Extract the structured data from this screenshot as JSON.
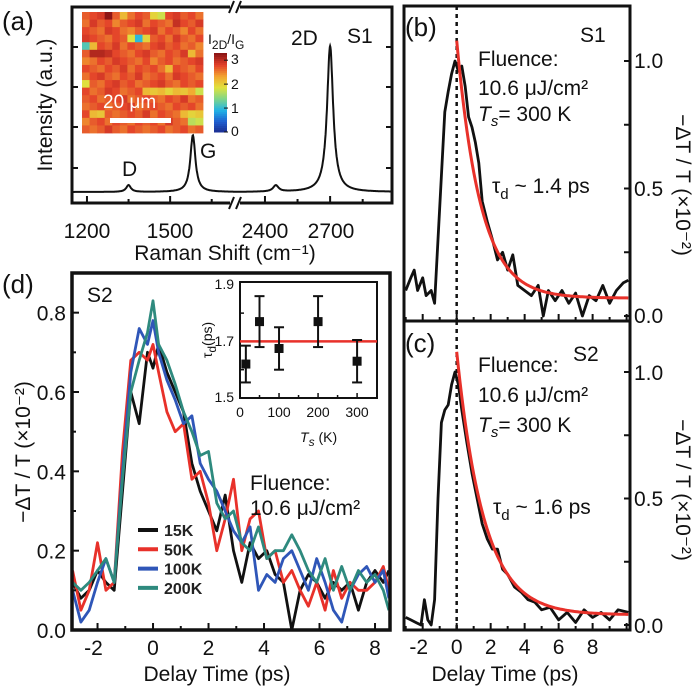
{
  "chart_data": [
    {
      "panel": "(a)",
      "type": "line",
      "sample": "S1",
      "xlabel": "Raman Shift (cm⁻¹)",
      "ylabel": "Intensity (a.u.)",
      "xaxis_broken": true,
      "xlim_left": [
        1146,
        1734
      ],
      "xlim_right": [
        2262,
        2985
      ],
      "ylim": [
        0,
        1
      ],
      "xticks": [
        "1200",
        "1500",
        "2400",
        "2700"
      ],
      "xtick_values": [
        1200,
        1500,
        2400,
        2700
      ],
      "baseline": 0.056,
      "peaks": [
        {
          "label": "D",
          "center": 1350,
          "height": 0.035,
          "hwhm": 10
        },
        {
          "label": "G",
          "center": 1582,
          "height": 0.29,
          "hwhm": 11
        },
        {
          "label": "",
          "center": 2450,
          "height": 0.032,
          "hwhm": 15
        },
        {
          "label": "2D",
          "center": 2700,
          "height": 0.745,
          "hwhm": 17
        }
      ],
      "inset": {
        "type": "heatmap",
        "colorbar_label": {
          "main": "I",
          "sub1": "2D",
          "mid": "/I",
          "sub2": "G"
        },
        "colorbar_ticks": [
          "3",
          "2",
          "1",
          "0"
        ],
        "colorbar_range": [
          0,
          3.3
        ],
        "scalebar_label": "20 μm",
        "colormap": [
          "#1b2a8c",
          "#1f5fd0",
          "#22b4e6",
          "#7ed58a",
          "#dfe23e",
          "#f3a530",
          "#e3402a",
          "#8e1616"
        ],
        "grid": [
          [
            2.7,
            2.8,
            2.9,
            3.3,
            2.7,
            2.2,
            2.6,
            2.8,
            2.7,
            2.0,
            1.8,
            2.8,
            2.9,
            2.7,
            2.8,
            2.6
          ],
          [
            2.6,
            2.9,
            2.7,
            2.8,
            2.5,
            2.7,
            2.8,
            2.9,
            2.6,
            2.8,
            2.7,
            2.6,
            3.0,
            2.8,
            2.7,
            2.9
          ],
          [
            2.8,
            2.7,
            2.6,
            2.9,
            2.8,
            2.6,
            2.5,
            2.7,
            2.8,
            2.9,
            2.6,
            2.8,
            2.7,
            2.5,
            2.8,
            2.6
          ],
          [
            2.9,
            2.8,
            2.7,
            2.6,
            2.8,
            2.7,
            1.9,
            1.0,
            2.0,
            2.7,
            2.8,
            2.6,
            2.9,
            2.7,
            2.6,
            2.8
          ],
          [
            1.2,
            2.2,
            2.8,
            2.7,
            2.9,
            2.6,
            2.8,
            2.7,
            2.6,
            2.8,
            2.9,
            2.7,
            2.8,
            2.6,
            2.7,
            2.5
          ],
          [
            2.7,
            3.1,
            3.1,
            3.0,
            2.8,
            2.7,
            2.6,
            2.8,
            2.9,
            2.7,
            2.6,
            2.8,
            2.7,
            2.9,
            2.2,
            2.6
          ],
          [
            2.5,
            2.6,
            2.8,
            2.7,
            2.9,
            2.8,
            2.7,
            2.6,
            2.8,
            2.5,
            2.7,
            2.8,
            2.6,
            2.7,
            2.8,
            2.9
          ],
          [
            2.8,
            2.7,
            2.6,
            2.8,
            2.7,
            2.9,
            2.6,
            2.8,
            2.7,
            2.8,
            2.6,
            2.2,
            2.8,
            2.7,
            2.6,
            2.8
          ],
          [
            2.6,
            2.8,
            2.9,
            2.7,
            2.6,
            2.8,
            2.7,
            2.9,
            2.6,
            2.7,
            2.8,
            2.6,
            2.9,
            2.8,
            2.7,
            2.6
          ],
          [
            1.9,
            2.7,
            2.6,
            2.8,
            2.9,
            2.7,
            2.8,
            2.6,
            2.7,
            2.8,
            2.9,
            2.7,
            2.6,
            2.8,
            2.7,
            2.8
          ],
          [
            2.8,
            2.6,
            2.7,
            2.9,
            2.8,
            2.6,
            2.7,
            2.8,
            2.2,
            2.1,
            2.2,
            2.0,
            2.2,
            2.1,
            2.3,
            1.8
          ],
          [
            2.7,
            2.8,
            2.6,
            2.7,
            2.8,
            2.9,
            2.6,
            2.7,
            2.8,
            2.7,
            2.6,
            2.8,
            2.7,
            2.9,
            2.6,
            2.7
          ],
          [
            2.6,
            2.7,
            2.8,
            2.6,
            2.7,
            2.8,
            2.9,
            2.6,
            2.7,
            2.8,
            2.7,
            2.6,
            2.8,
            2.7,
            2.8,
            2.6
          ],
          [
            2.8,
            2.2,
            2.1,
            2.7,
            2.6,
            2.7,
            2.8,
            2.7,
            2.9,
            2.6,
            2.8,
            2.7,
            2.6,
            2.2,
            2.0,
            2.1
          ],
          [
            2.5,
            2.7,
            2.8,
            2.6,
            2.8,
            2.7,
            2.6,
            2.8,
            2.7,
            2.8,
            2.6,
            2.9,
            2.7,
            2.6,
            1.7,
            1.8
          ],
          [
            2.7,
            2.6,
            2.7,
            2.9,
            2.7,
            2.6,
            2.8,
            2.7,
            2.6,
            2.7,
            2.8,
            2.6,
            2.7,
            2.8,
            2.6,
            2.7
          ]
        ]
      },
      "annotations": {
        "d": "D",
        "g": "G",
        "two_d": "2D",
        "sample": "S1"
      }
    },
    {
      "panel": "(b)",
      "type": "line",
      "sample": "S1",
      "xlim": [
        -3.1,
        10.2
      ],
      "ylim": [
        0,
        1.22
      ],
      "yticks": [
        "1.0",
        "0.5",
        "0.0"
      ],
      "ylabel": "−ΔT / T (×10⁻²)",
      "fluence_label": "Fluence:",
      "fluence_value": "10.6 μJ/cm²",
      "temperature": {
        "t": "T",
        "s": "s",
        "rest": "= 300 K"
      },
      "tau": {
        "tau": "τ",
        "d": "d",
        "rest": " ~ 1.4 ps"
      },
      "fit": {
        "amplitude": 1.01,
        "tau_ps": 1.4,
        "offset": 0.07,
        "color": "#e8312a"
      },
      "x": [
        -3.0,
        -2.7,
        -2.5,
        -2.3,
        -2.0,
        -1.8,
        -1.5,
        -1.3,
        -1.1,
        -0.9,
        -0.7,
        -0.5,
        -0.3,
        -0.1,
        0.1,
        0.3,
        0.5,
        0.7,
        0.9,
        1.1,
        1.3,
        1.5,
        1.8,
        2.1,
        2.4,
        2.7,
        3.0,
        3.3,
        3.6,
        4.0,
        4.4,
        4.8,
        5.1,
        5.4,
        5.8,
        6.2,
        6.6,
        7.0,
        7.4,
        7.8,
        8.2,
        8.6,
        9.0,
        9.4,
        9.8,
        10.1
      ],
      "y": [
        0.1,
        0.15,
        0.18,
        0.1,
        0.15,
        0.08,
        0.1,
        0.05,
        0.3,
        0.55,
        0.8,
        0.88,
        0.95,
        1.0,
        0.96,
        0.98,
        0.9,
        0.78,
        0.74,
        0.68,
        0.6,
        0.45,
        0.37,
        0.3,
        0.22,
        0.25,
        0.18,
        0.24,
        0.12,
        0.1,
        0.08,
        0.12,
        0.0,
        0.1,
        0.06,
        0.1,
        0.05,
        0.09,
        0.0,
        0.08,
        0.06,
        0.12,
        0.05,
        0.1,
        0.13,
        0.14
      ]
    },
    {
      "panel": "(c)",
      "type": "line",
      "sample": "S2",
      "xlim": [
        -3.1,
        10.2
      ],
      "ylim": [
        0,
        1.2
      ],
      "xticks": [
        "-2",
        "0",
        "2",
        "4",
        "6",
        "8"
      ],
      "yticks": [
        "1.0",
        "0.5",
        "0.0"
      ],
      "xlabel": "Delay Time (ps)",
      "ylabel": "−ΔT / T (×10⁻²)",
      "fluence_label": "Fluence:",
      "fluence_value": "10.6 μJ/cm²",
      "temperature": {
        "t": "T",
        "s": "s",
        "rest": "= 300 K"
      },
      "tau": {
        "tau": "τ",
        "d": "d",
        "rest": " ~ 1.6 ps"
      },
      "fit": {
        "amplitude": 1.04,
        "tau_ps": 1.6,
        "offset": 0.04,
        "color": "#e8312a"
      },
      "x": [
        -3.0,
        -2.7,
        -2.4,
        -2.1,
        -1.9,
        -1.7,
        -1.5,
        -1.3,
        -1.1,
        -0.9,
        -0.7,
        -0.5,
        -0.3,
        -0.1,
        0.1,
        0.3,
        0.6,
        0.9,
        1.2,
        1.5,
        1.8,
        2.1,
        2.4,
        2.7,
        3.0,
        3.4,
        3.8,
        4.2,
        4.6,
        5.0,
        5.5,
        6.0,
        6.5,
        7.0,
        7.5,
        8.0,
        8.5,
        9.0,
        9.5,
        10.1
      ],
      "y": [
        0.03,
        0.02,
        0.01,
        0.0,
        0.1,
        0.02,
        0.0,
        0.1,
        0.5,
        0.8,
        0.85,
        0.87,
        0.95,
        1.0,
        0.95,
        0.85,
        0.72,
        0.6,
        0.5,
        0.4,
        0.34,
        0.3,
        0.3,
        0.22,
        0.2,
        0.15,
        0.13,
        0.1,
        0.09,
        0.06,
        0.07,
        0.02,
        0.05,
        0.01,
        0.06,
        0.03,
        0.05,
        0.02,
        0.06,
        0.05
      ]
    },
    {
      "panel": "(d)",
      "type": "line",
      "sample": "S2",
      "xlim": [
        -2.92,
        8.54
      ],
      "ylim": [
        0,
        0.9
      ],
      "xticks": [
        "-2",
        "0",
        "2",
        "4",
        "6",
        "8"
      ],
      "yticks": [
        "0.8",
        "0.6",
        "0.4",
        "0.2",
        "0.0"
      ],
      "xlabel": "Delay Time (ps)",
      "ylabel": "−ΔT / T (×10⁻²)",
      "fluence_label": "Fluence:",
      "fluence_value": "10.6 μJ/cm²",
      "legend_position": "bottom-left",
      "x": [
        -2.9,
        -2.6,
        -2.3,
        -2.0,
        -1.7,
        -1.4,
        -1.1,
        -0.8,
        -0.5,
        -0.2,
        0,
        0.2,
        0.5,
        0.8,
        1.1,
        1.4,
        1.7,
        2.0,
        2.3,
        2.6,
        2.9,
        3.2,
        3.5,
        3.8,
        4.1,
        4.4,
        4.7,
        5.0,
        5.3,
        5.6,
        5.9,
        6.2,
        6.5,
        6.8,
        7.1,
        7.4,
        7.7,
        8.0,
        8.3,
        8.5
      ],
      "series": [
        {
          "name": "15K",
          "color": "#111111",
          "values": [
            0.12,
            0.08,
            0.1,
            0.15,
            0.12,
            0.1,
            0.35,
            0.6,
            0.52,
            0.7,
            0.66,
            0.72,
            0.65,
            0.6,
            0.55,
            0.42,
            0.35,
            0.3,
            0.25,
            0.34,
            0.2,
            0.12,
            0.22,
            0.18,
            0.2,
            0.14,
            0.12,
            0.0,
            0.1,
            0.14,
            0.12,
            0.08,
            0.12,
            0.1,
            0.12,
            0.05,
            0.12,
            0.15,
            0.12,
            0.15
          ]
        },
        {
          "name": "50K",
          "color": "#e8312a",
          "values": [
            0.15,
            0.05,
            0.1,
            0.22,
            0.1,
            0.12,
            0.45,
            0.68,
            0.7,
            0.68,
            0.72,
            0.65,
            0.55,
            0.5,
            0.52,
            0.38,
            0.4,
            0.32,
            0.2,
            0.28,
            0.38,
            0.2,
            0.28,
            0.3,
            0.18,
            0.2,
            0.12,
            0.15,
            0.1,
            0.06,
            0.12,
            0.05,
            0.15,
            0.08,
            0.12,
            0.1,
            0.1,
            0.12,
            0.16,
            0.1
          ]
        },
        {
          "name": "100K",
          "color": "#2f56b8",
          "values": [
            0.1,
            0.02,
            0.05,
            0.12,
            0.18,
            0.12,
            0.4,
            0.65,
            0.76,
            0.72,
            0.78,
            0.7,
            0.63,
            0.58,
            0.52,
            0.54,
            0.42,
            0.38,
            0.35,
            0.3,
            0.25,
            0.22,
            0.26,
            0.1,
            0.14,
            0.12,
            0.18,
            0.2,
            0.15,
            0.1,
            0.18,
            0.12,
            0.05,
            0.02,
            0.1,
            0.14,
            0.16,
            0.12,
            0.15,
            0.08
          ]
        },
        {
          "name": "200K",
          "color": "#2e8a7e",
          "values": [
            0.12,
            0.1,
            0.12,
            0.15,
            0.18,
            0.12,
            0.38,
            0.6,
            0.68,
            0.75,
            0.83,
            0.72,
            0.68,
            0.62,
            0.55,
            0.5,
            0.44,
            0.45,
            0.32,
            0.28,
            0.3,
            0.22,
            0.2,
            0.26,
            0.18,
            0.2,
            0.2,
            0.24,
            0.2,
            0.15,
            0.12,
            0.18,
            0.1,
            0.16,
            0.1,
            0.15,
            0.12,
            0.14,
            0.1,
            0.05
          ]
        }
      ],
      "inset": {
        "type": "scatter",
        "xlabel": {
          "t": "T",
          "s": "s",
          "rest": " (K)"
        },
        "ylabel": {
          "tau": "τ",
          "d": "d",
          "rest": "(ps)"
        },
        "xlim": [
          0,
          351
        ],
        "ylim": [
          1.5,
          1.91
        ],
        "xticks": [
          "0",
          "100",
          "200",
          "300"
        ],
        "yticks": [
          "1.9",
          "1.7",
          "1.5"
        ],
        "points": [
          {
            "x": 15,
            "y": 1.62,
            "err": 0.065
          },
          {
            "x": 50,
            "y": 1.77,
            "err": 0.09
          },
          {
            "x": 100,
            "y": 1.675,
            "err": 0.075
          },
          {
            "x": 200,
            "y": 1.77,
            "err": 0.09
          },
          {
            "x": 300,
            "y": 1.63,
            "err": 0.075
          }
        ],
        "reference_line": {
          "y": 1.7,
          "color": "#e8312a"
        }
      }
    }
  ]
}
